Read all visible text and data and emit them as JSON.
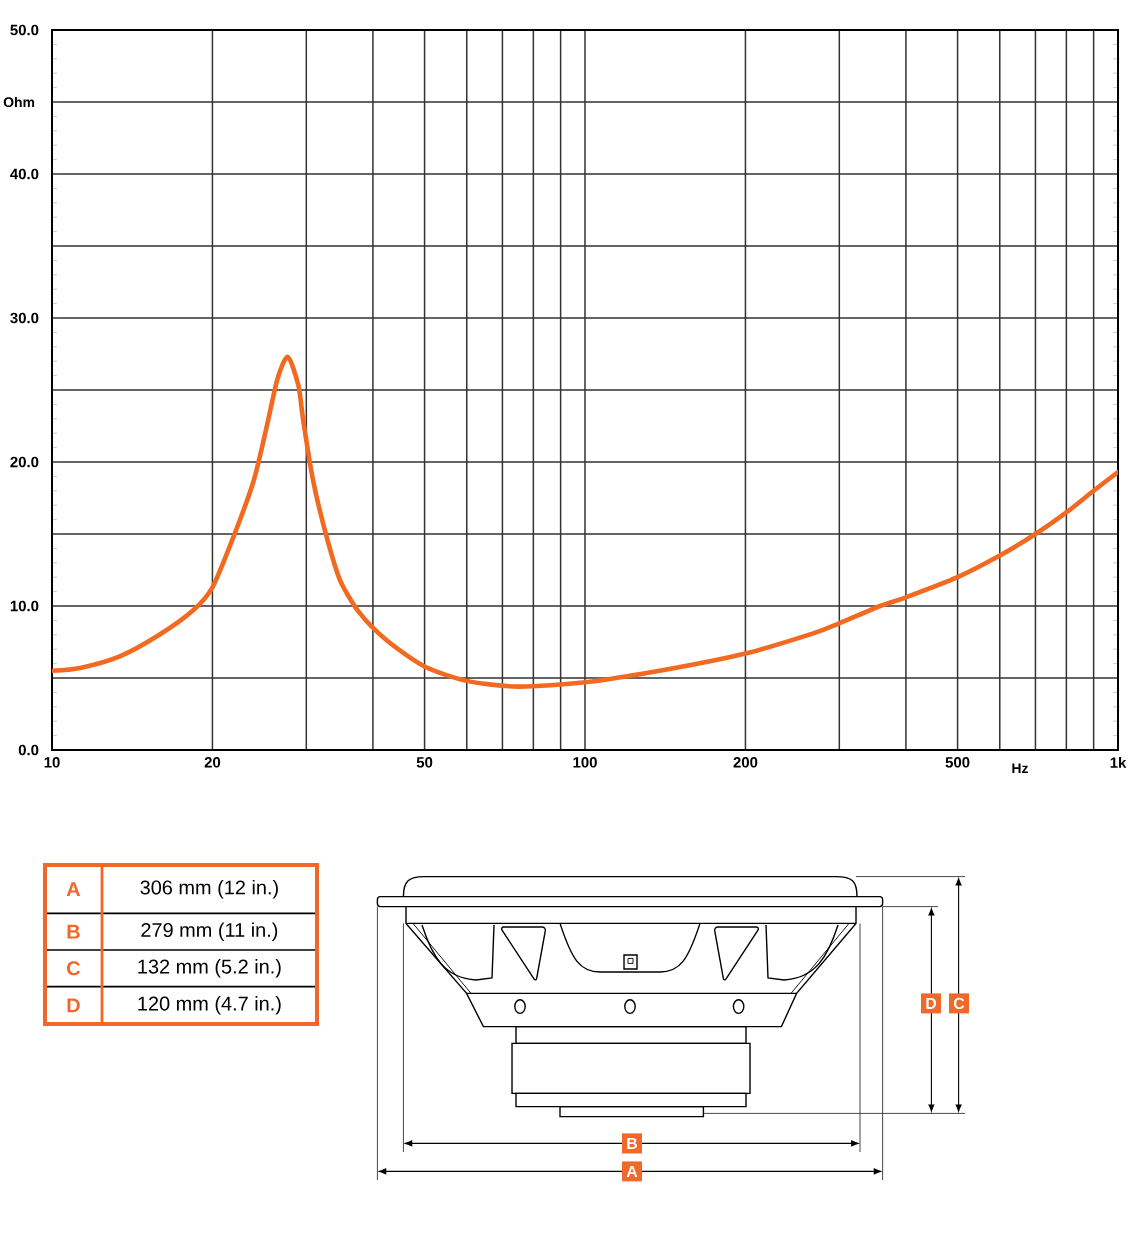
{
  "chart_data": {
    "type": "line",
    "xlabel": "Hz",
    "ylabel": "Ohm",
    "log": "x",
    "grid": true,
    "xlim": [
      10,
      1000
    ],
    "ylim": [
      0,
      50
    ],
    "xticks": [
      10,
      20,
      {
        "value": 30,
        "label": null
      },
      {
        "value": 40,
        "label": null
      },
      50,
      {
        "value": 60,
        "label": null
      },
      {
        "value": 70,
        "label": null
      },
      {
        "value": 80,
        "label": null
      },
      {
        "value": 90,
        "label": null
      },
      100,
      200,
      {
        "value": 300,
        "label": null
      },
      {
        "value": 400,
        "label": null
      },
      500,
      {
        "value": 600,
        "label": null
      },
      {
        "value": 700,
        "label": null
      },
      {
        "value": 800,
        "label": null
      },
      {
        "value": 900,
        "label": null
      },
      {
        "value": 1000,
        "label": "1k"
      }
    ],
    "yticks": [
      {
        "value": 0,
        "label": "0.0"
      },
      {
        "value": 5,
        "label": null
      },
      {
        "value": 10,
        "label": "10.0"
      },
      {
        "value": 15,
        "label": null
      },
      {
        "value": 20,
        "label": "20.0"
      },
      {
        "value": 25,
        "label": null
      },
      {
        "value": 30,
        "label": "30.0"
      },
      {
        "value": 35,
        "label": null
      },
      {
        "value": 40,
        "label": "40.0"
      },
      {
        "value": 45,
        "label": null
      },
      {
        "value": 50,
        "label": "50.0"
      }
    ],
    "x": [
      10,
      11.3,
      13.4,
      15.9,
      18.4,
      20,
      21.9,
      23.9,
      25.3,
      26.5,
      27.7,
      29,
      29.6,
      30.9,
      32.7,
      34.7,
      37.8,
      42.5,
      50,
      60,
      75,
      100,
      138,
      200,
      268,
      300,
      358,
      400,
      500,
      600,
      700,
      800,
      900,
      1000
    ],
    "series": [
      {
        "color": "#f26a21",
        "values": [
          5.5,
          5.7,
          6.5,
          8.0,
          9.7,
          11.3,
          14.8,
          18.7,
          22.5,
          25.8,
          27.3,
          25.3,
          22.9,
          18.7,
          14.9,
          11.8,
          9.5,
          7.6,
          5.8,
          4.8,
          4.4,
          4.7,
          5.5,
          6.7,
          8.1,
          8.8,
          10.0,
          10.6,
          12.0,
          13.5,
          15.0,
          16.5,
          18.0,
          19.3
        ]
      }
    ],
    "annotations": [
      "A",
      "306 mm (12 in.)",
      "B",
      "279 mm (11 in.)",
      "C",
      "132 mm (5.2 in.)",
      "D",
      "120 mm (4.7 in.)",
      "D",
      "C",
      "B",
      "A"
    ]
  }
}
